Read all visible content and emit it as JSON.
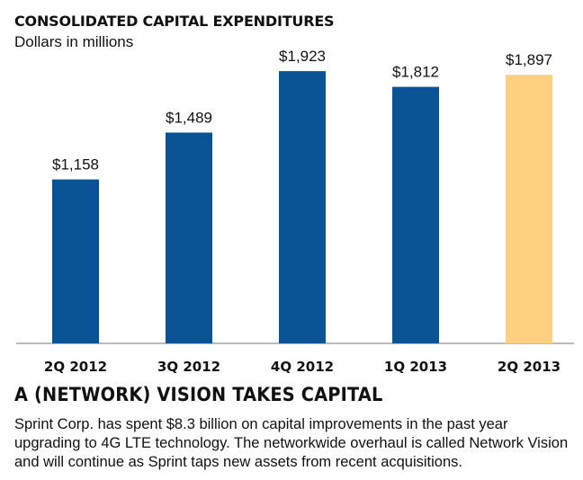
{
  "chart_data": {
    "type": "bar",
    "title": "CONSOLIDATED CAPITAL EXPENDITURES",
    "subtitle": "Dollars in millions",
    "categories": [
      "2Q 2012",
      "3Q 2012",
      "4Q 2012",
      "1Q 2013",
      "2Q 2013"
    ],
    "values": [
      1158,
      1489,
      1923,
      1812,
      1897
    ],
    "data_labels": [
      "$1,158",
      "$1,489",
      "$1,923",
      "$1,812",
      "$1,897"
    ],
    "bar_colors": [
      "#0a5395",
      "#0a5395",
      "#0a5395",
      "#0a5395",
      "#fdd17f"
    ],
    "xlabel": "",
    "ylabel": "",
    "ylim": [
      0,
      2000
    ],
    "grid": false,
    "legend": "none"
  },
  "headline": "A (NETWORK) VISION TAKES CAPITAL",
  "body_text": "Sprint Corp. has spent $8.3 billion on capital improvements in the past year upgrading to 4G LTE technology. The networkwide overhaul is called Network Vision and will continue as Sprint taps new assets from recent acquisitions."
}
